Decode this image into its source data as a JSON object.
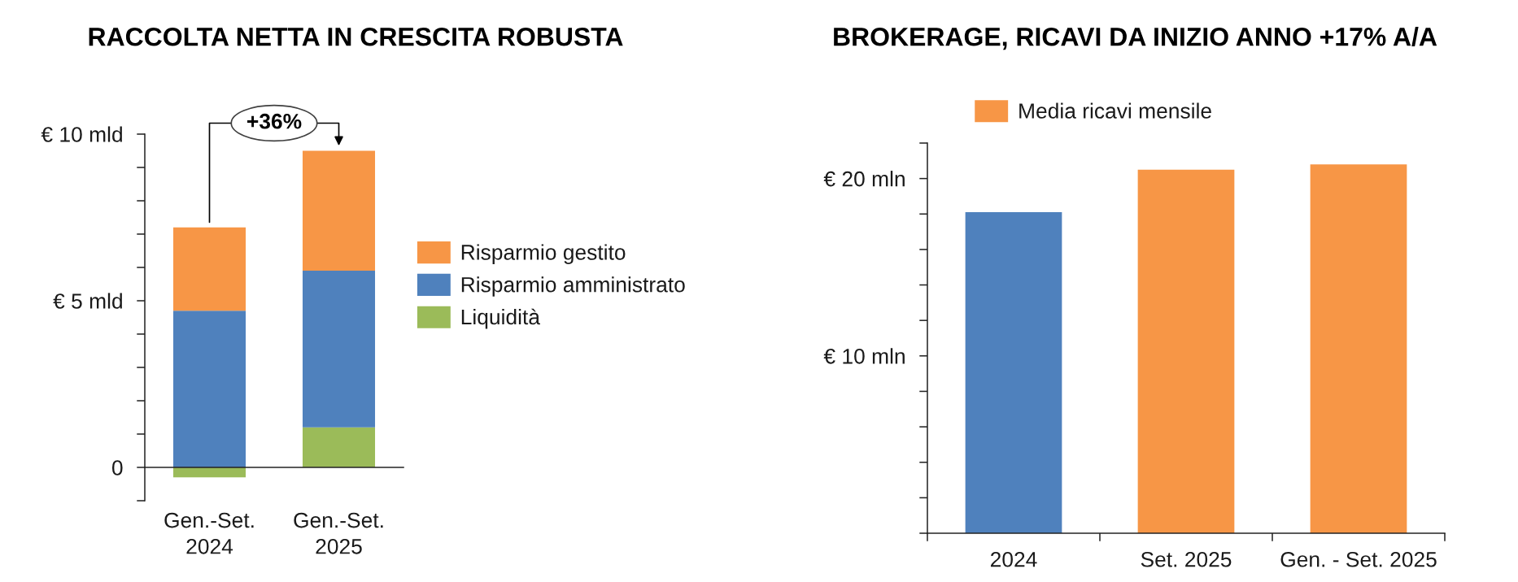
{
  "chart_data": [
    {
      "type": "bar",
      "title": "RACCOLTA NETTA IN CRESCITA ROBUSTA",
      "categories": [
        "Gen.-Set.\n2024",
        "Gen.-Set.\n2025"
      ],
      "stacked": true,
      "series": [
        {
          "name": "Liquidità",
          "color": "#9bbb59",
          "values": [
            -0.3,
            1.2
          ]
        },
        {
          "name": "Risparmio amministrato",
          "color": "#4f81bd",
          "values": [
            4.7,
            4.7
          ]
        },
        {
          "name": "Risparmio gestito",
          "color": "#f79646",
          "values": [
            2.5,
            3.6
          ]
        }
      ],
      "ylim": [
        -1,
        10
      ],
      "yticks": [
        {
          "value": -1,
          "label": null
        },
        0,
        {
          "value": 1,
          "label": null
        },
        {
          "value": 2,
          "label": null
        },
        {
          "value": 3,
          "label": null
        },
        {
          "value": 4,
          "label": null
        },
        {
          "value": 5,
          "label": "€ 5 mld"
        },
        {
          "value": 6,
          "label": null
        },
        {
          "value": 7,
          "label": null
        },
        {
          "value": 8,
          "label": null
        },
        {
          "value": 9,
          "label": null
        },
        {
          "value": 10,
          "label": "€ 10 mld"
        }
      ],
      "legend": "right",
      "annotations": [
        "+36%"
      ]
    },
    {
      "type": "bar",
      "title": "BROKERAGE, RICAVI DA INIZIO ANNO +17% A/A",
      "categories": [
        "2024",
        "Set. 2025",
        "Gen. - Set. 2025"
      ],
      "series": [
        {
          "name": "Media ricavi mensile",
          "color": "#f79646",
          "colors": [
            "#4f81bd",
            "#f79646",
            "#f79646"
          ],
          "values": [
            18.1,
            20.5,
            20.8
          ]
        }
      ],
      "ylim": [
        0,
        22
      ],
      "yticks": [
        {
          "value": 0,
          "label": null
        },
        {
          "value": 2,
          "label": null
        },
        {
          "value": 4,
          "label": null
        },
        {
          "value": 6,
          "label": null
        },
        {
          "value": 8,
          "label": null
        },
        {
          "value": 10,
          "label": "€ 10 mln"
        },
        {
          "value": 12,
          "label": null
        },
        {
          "value": 14,
          "label": null
        },
        {
          "value": 16,
          "label": null
        },
        {
          "value": 18,
          "label": null
        },
        {
          "value": 20,
          "label": "€ 20 mln"
        },
        {
          "value": 22,
          "label": null
        }
      ],
      "legend": "top left"
    }
  ]
}
